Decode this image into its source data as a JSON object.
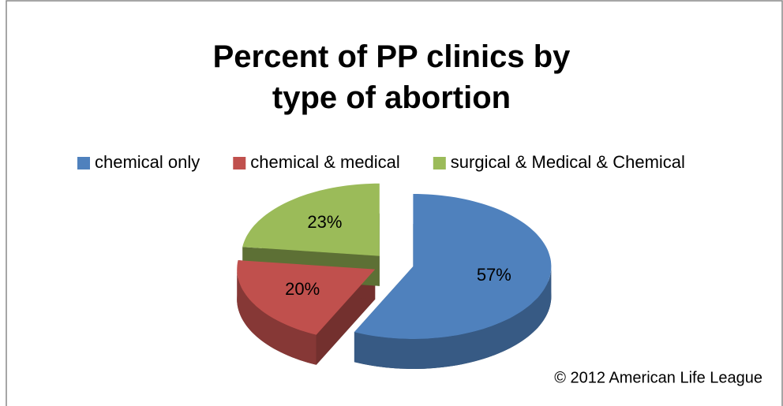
{
  "chart_data": {
    "type": "pie",
    "title": "Percent of PP clinics by type of abortion",
    "categories": [
      "chemical only",
      "chemical & medical",
      "surgical & Medical & Chemical"
    ],
    "values": [
      57,
      20,
      23
    ],
    "value_labels": [
      "57%",
      "20%",
      "23%"
    ],
    "colors": [
      "#4f81bd",
      "#c0504d",
      "#9bbb59"
    ],
    "legend": "top",
    "annotation": "© 2012 American Life League"
  }
}
